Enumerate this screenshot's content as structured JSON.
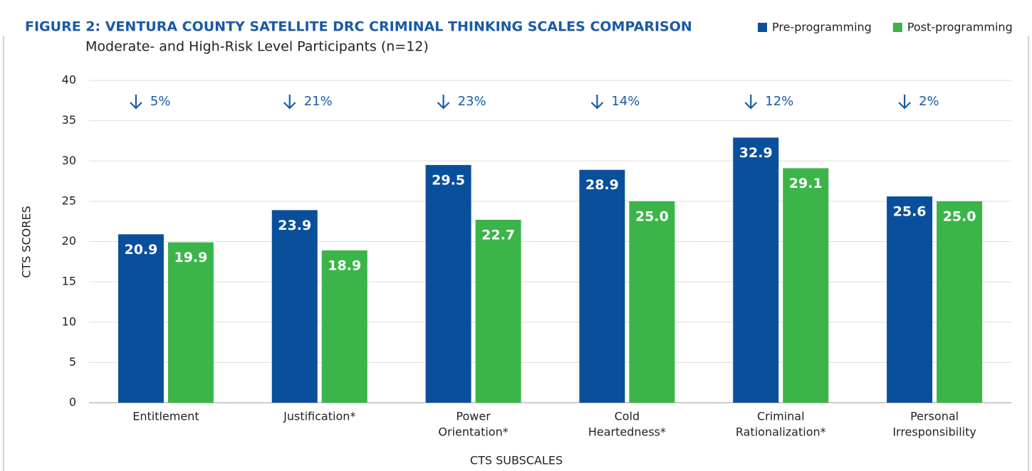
{
  "chart_data": {
    "type": "bar",
    "title": "FIGURE 2: VENTURA COUNTY SATELLITE DRC CRIMINAL THINKING SCALES COMPARISON",
    "subtitle": "Moderate- and High-Risk Level Participants (n=12)",
    "y_label": "CTS SCORES",
    "x_label": "CTS SUBSCALES",
    "categories": [
      [
        "Entitlement"
      ],
      [
        "Justification*"
      ],
      [
        "Power",
        "Orientation*"
      ],
      [
        "Cold",
        "Heartedness*"
      ],
      [
        "Criminal",
        "Rationalization*"
      ],
      [
        "Personal",
        "Irresponsibility"
      ]
    ],
    "series": [
      {
        "name": "Pre-programming",
        "color": "#0a4f9c",
        "values": [
          20.9,
          23.9,
          29.5,
          28.9,
          32.9,
          25.6
        ],
        "value_labels": [
          "20.9",
          "23.9",
          "29.5",
          "28.9",
          "32.9",
          "25.6"
        ]
      },
      {
        "name": "Post-programming",
        "color": "#3bb54a",
        "values": [
          19.9,
          18.9,
          22.7,
          25.0,
          29.1,
          25.0
        ],
        "value_labels": [
          "19.9",
          "18.9",
          "22.7",
          "25.0",
          "29.1",
          "25.0"
        ]
      }
    ],
    "annotations": [
      "5%",
      "21%",
      "23%",
      "14%",
      "12%",
      "2%"
    ],
    "ylim": [
      0,
      40
    ],
    "yticks": [
      0,
      5,
      10,
      15,
      20,
      25,
      30,
      35,
      40
    ],
    "grid": true,
    "legend": "top-right"
  }
}
